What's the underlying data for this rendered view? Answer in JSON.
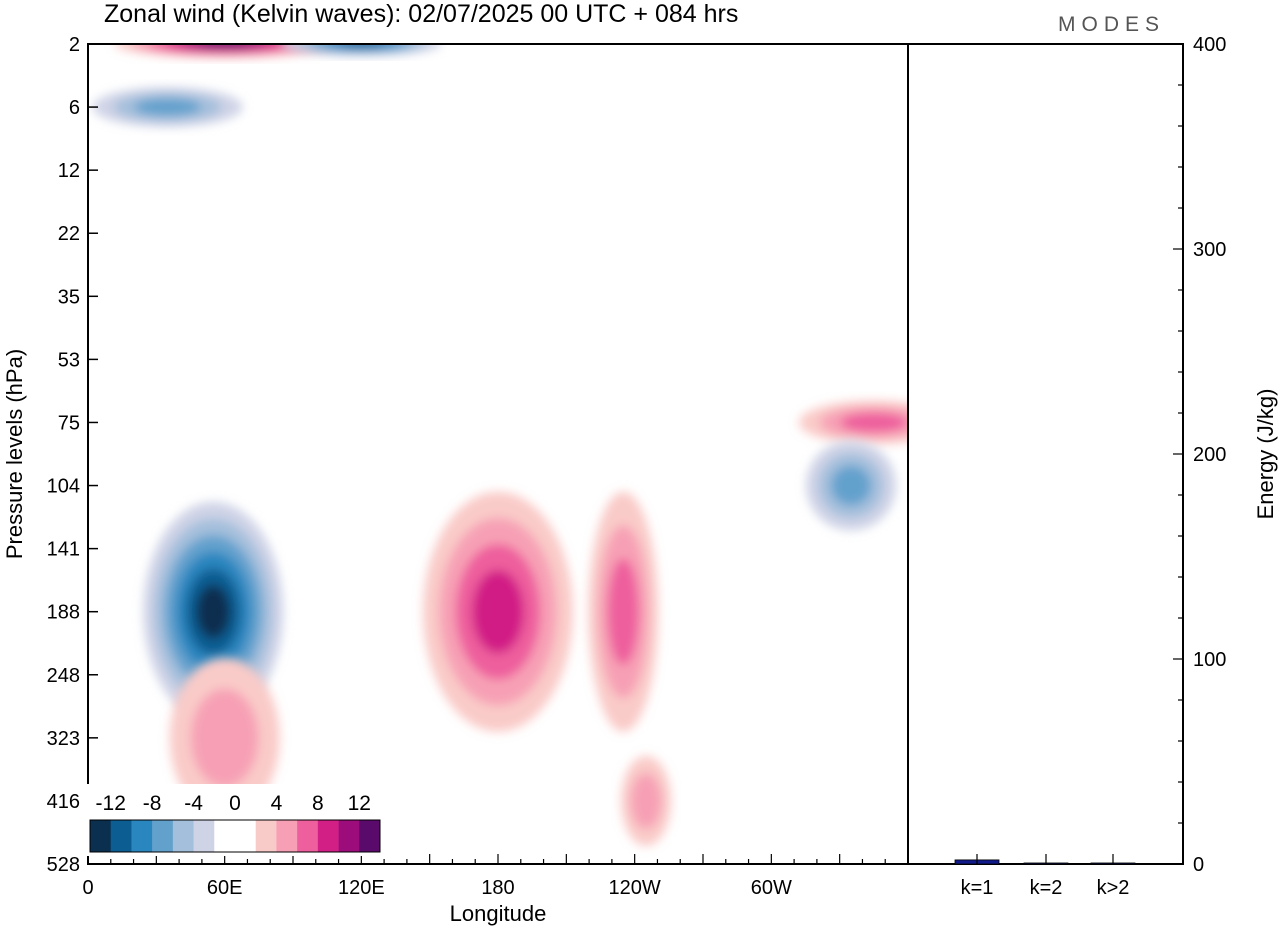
{
  "chart_data": [
    {
      "type": "heatmap",
      "title": "Zonal wind (Kelvin waves):  02/07/2025  00 UTC  + 084 hrs",
      "xlabel": "Longitude",
      "ylabel": "Pressure levels (hPa)",
      "x_ticks": [
        "0",
        "60E",
        "120E",
        "180",
        "120W",
        "60W"
      ],
      "x_tick_degrees": [
        0,
        60,
        120,
        180,
        240,
        300
      ],
      "xlim": [
        0,
        360
      ],
      "y_ticks": [
        "2",
        "6",
        "12",
        "22",
        "35",
        "53",
        "75",
        "104",
        "141",
        "188",
        "248",
        "323",
        "416",
        "528"
      ],
      "y_scale": "level index (nonlinear pressure)",
      "colorbar": {
        "labels": [
          "-12",
          "-8",
          "-4",
          "0",
          "4",
          "8",
          "12"
        ],
        "colors": [
          "#0b2f4f",
          "#0b5d92",
          "#2a86bf",
          "#63a1cd",
          "#a4bfdc",
          "#cfd3e6",
          "#ffffff",
          "#ffffff",
          "#f9cbc8",
          "#f7a0b5",
          "#ee5f9d",
          "#d11f86",
          "#9c0d7b",
          "#5a0a6b"
        ]
      },
      "features": [
        {
          "sign": "positive",
          "lon": 60,
          "level": "2",
          "peak": 12
        },
        {
          "sign": "negative",
          "lon": 120,
          "level": "2",
          "peak": -10
        },
        {
          "sign": "negative",
          "lon": 35,
          "level": "6",
          "peak": -6
        },
        {
          "sign": "negative",
          "lon": 55,
          "level": "188",
          "peak": -12
        },
        {
          "sign": "positive",
          "lon": 180,
          "level": "188",
          "peak": 8
        },
        {
          "sign": "positive",
          "lon": 235,
          "level": "188",
          "peak": 6
        },
        {
          "sign": "positive",
          "lon": 345,
          "level": "75",
          "peak": 6
        },
        {
          "sign": "negative",
          "lon": 335,
          "level": "104",
          "peak": -6
        },
        {
          "sign": "positive",
          "lon": 60,
          "level": "323",
          "peak": 3
        },
        {
          "sign": "positive",
          "lon": 245,
          "level": "416",
          "peak": 4
        }
      ]
    },
    {
      "type": "bar",
      "categories": [
        "k=1",
        "k=2",
        "k>2"
      ],
      "values": [
        2,
        0.5,
        0.5
      ],
      "ylabel": "Energy (J/kg)",
      "ylim": [
        0,
        400
      ],
      "y_ticks": [
        "0",
        "100",
        "200",
        "300",
        "400"
      ],
      "bar_color": "#101a8a"
    }
  ],
  "logo_text": "MODES"
}
